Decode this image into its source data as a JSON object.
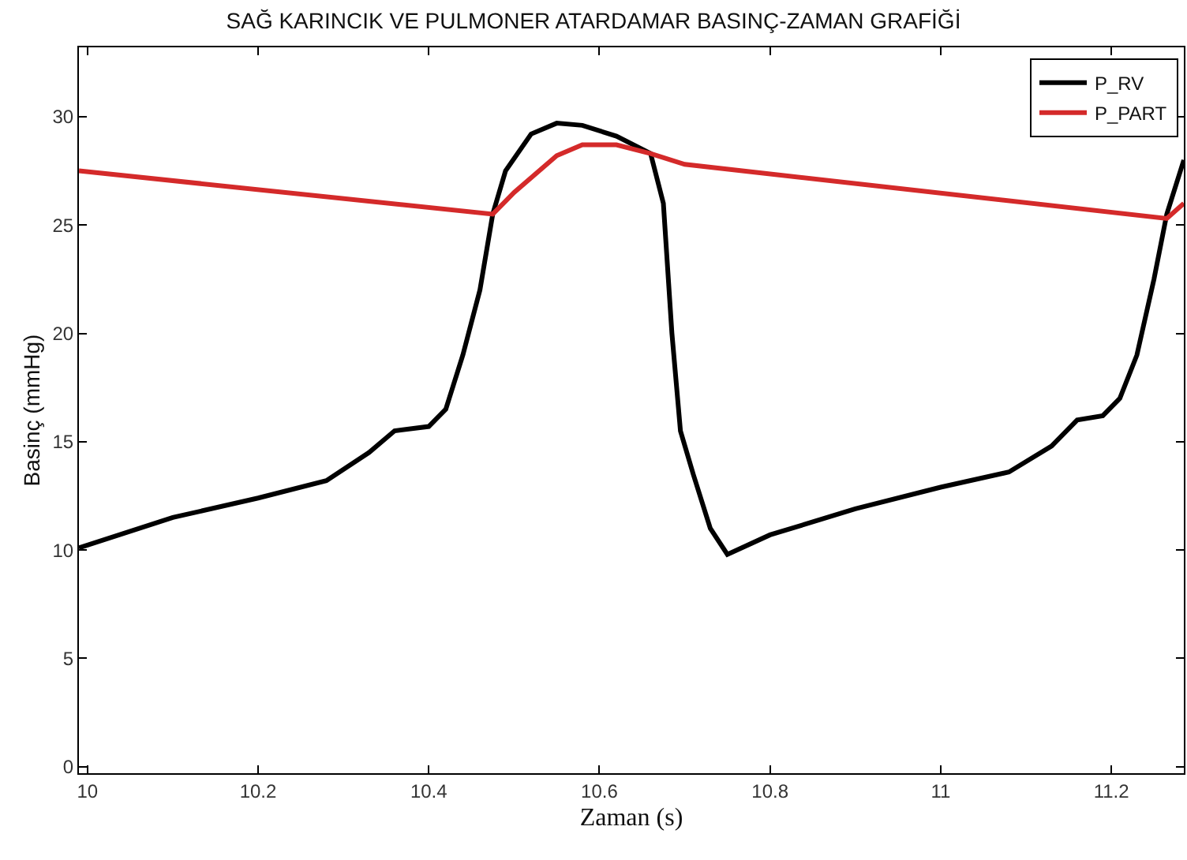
{
  "chart_data": {
    "type": "line",
    "title": "SAĞ KARINCIK VE PULMONER ATARDAMAR BASINÇ-ZAMAN GRAFİĞİ",
    "xlabel": "Zaman (s)",
    "ylabel": "Basinç (mmHg)",
    "xlim": [
      9.99,
      11.285
    ],
    "ylim": [
      -0.3,
      33.2
    ],
    "xticks": [
      10,
      10.2,
      10.4,
      10.6,
      10.8,
      11,
      11.2
    ],
    "yticks": [
      0,
      5,
      10,
      15,
      20,
      25,
      30
    ],
    "legend": "top right",
    "marker": "none",
    "line_style": "solid",
    "series": [
      {
        "name": "P_RV",
        "color": "#000000",
        "x": [
          9.99,
          10.1,
          10.2,
          10.28,
          10.33,
          10.36,
          10.4,
          10.42,
          10.44,
          10.46,
          10.475,
          10.49,
          10.52,
          10.55,
          10.58,
          10.62,
          10.66,
          10.675,
          10.685,
          10.695,
          10.71,
          10.73,
          10.75,
          10.8,
          10.9,
          11.0,
          11.08,
          11.13,
          11.16,
          11.19,
          11.21,
          11.23,
          11.25,
          11.265,
          11.285
        ],
        "values": [
          10.1,
          11.5,
          12.4,
          13.2,
          14.5,
          15.5,
          15.7,
          16.5,
          19,
          22,
          25.5,
          27.5,
          29.2,
          29.7,
          29.6,
          29.1,
          28.3,
          26,
          20,
          15.5,
          13.5,
          11,
          9.8,
          10.7,
          11.9,
          12.9,
          13.6,
          14.8,
          16.0,
          16.2,
          17,
          19,
          22.5,
          25.5,
          28.0
        ]
      },
      {
        "name": "P_PART",
        "color": "#d42a2a",
        "x": [
          9.99,
          10.475,
          10.5,
          10.55,
          10.58,
          10.62,
          10.66,
          10.7,
          11.265,
          11.285
        ],
        "values": [
          27.5,
          25.5,
          26.5,
          28.2,
          28.7,
          28.7,
          28.3,
          27.8,
          25.3,
          26.0
        ]
      }
    ]
  }
}
